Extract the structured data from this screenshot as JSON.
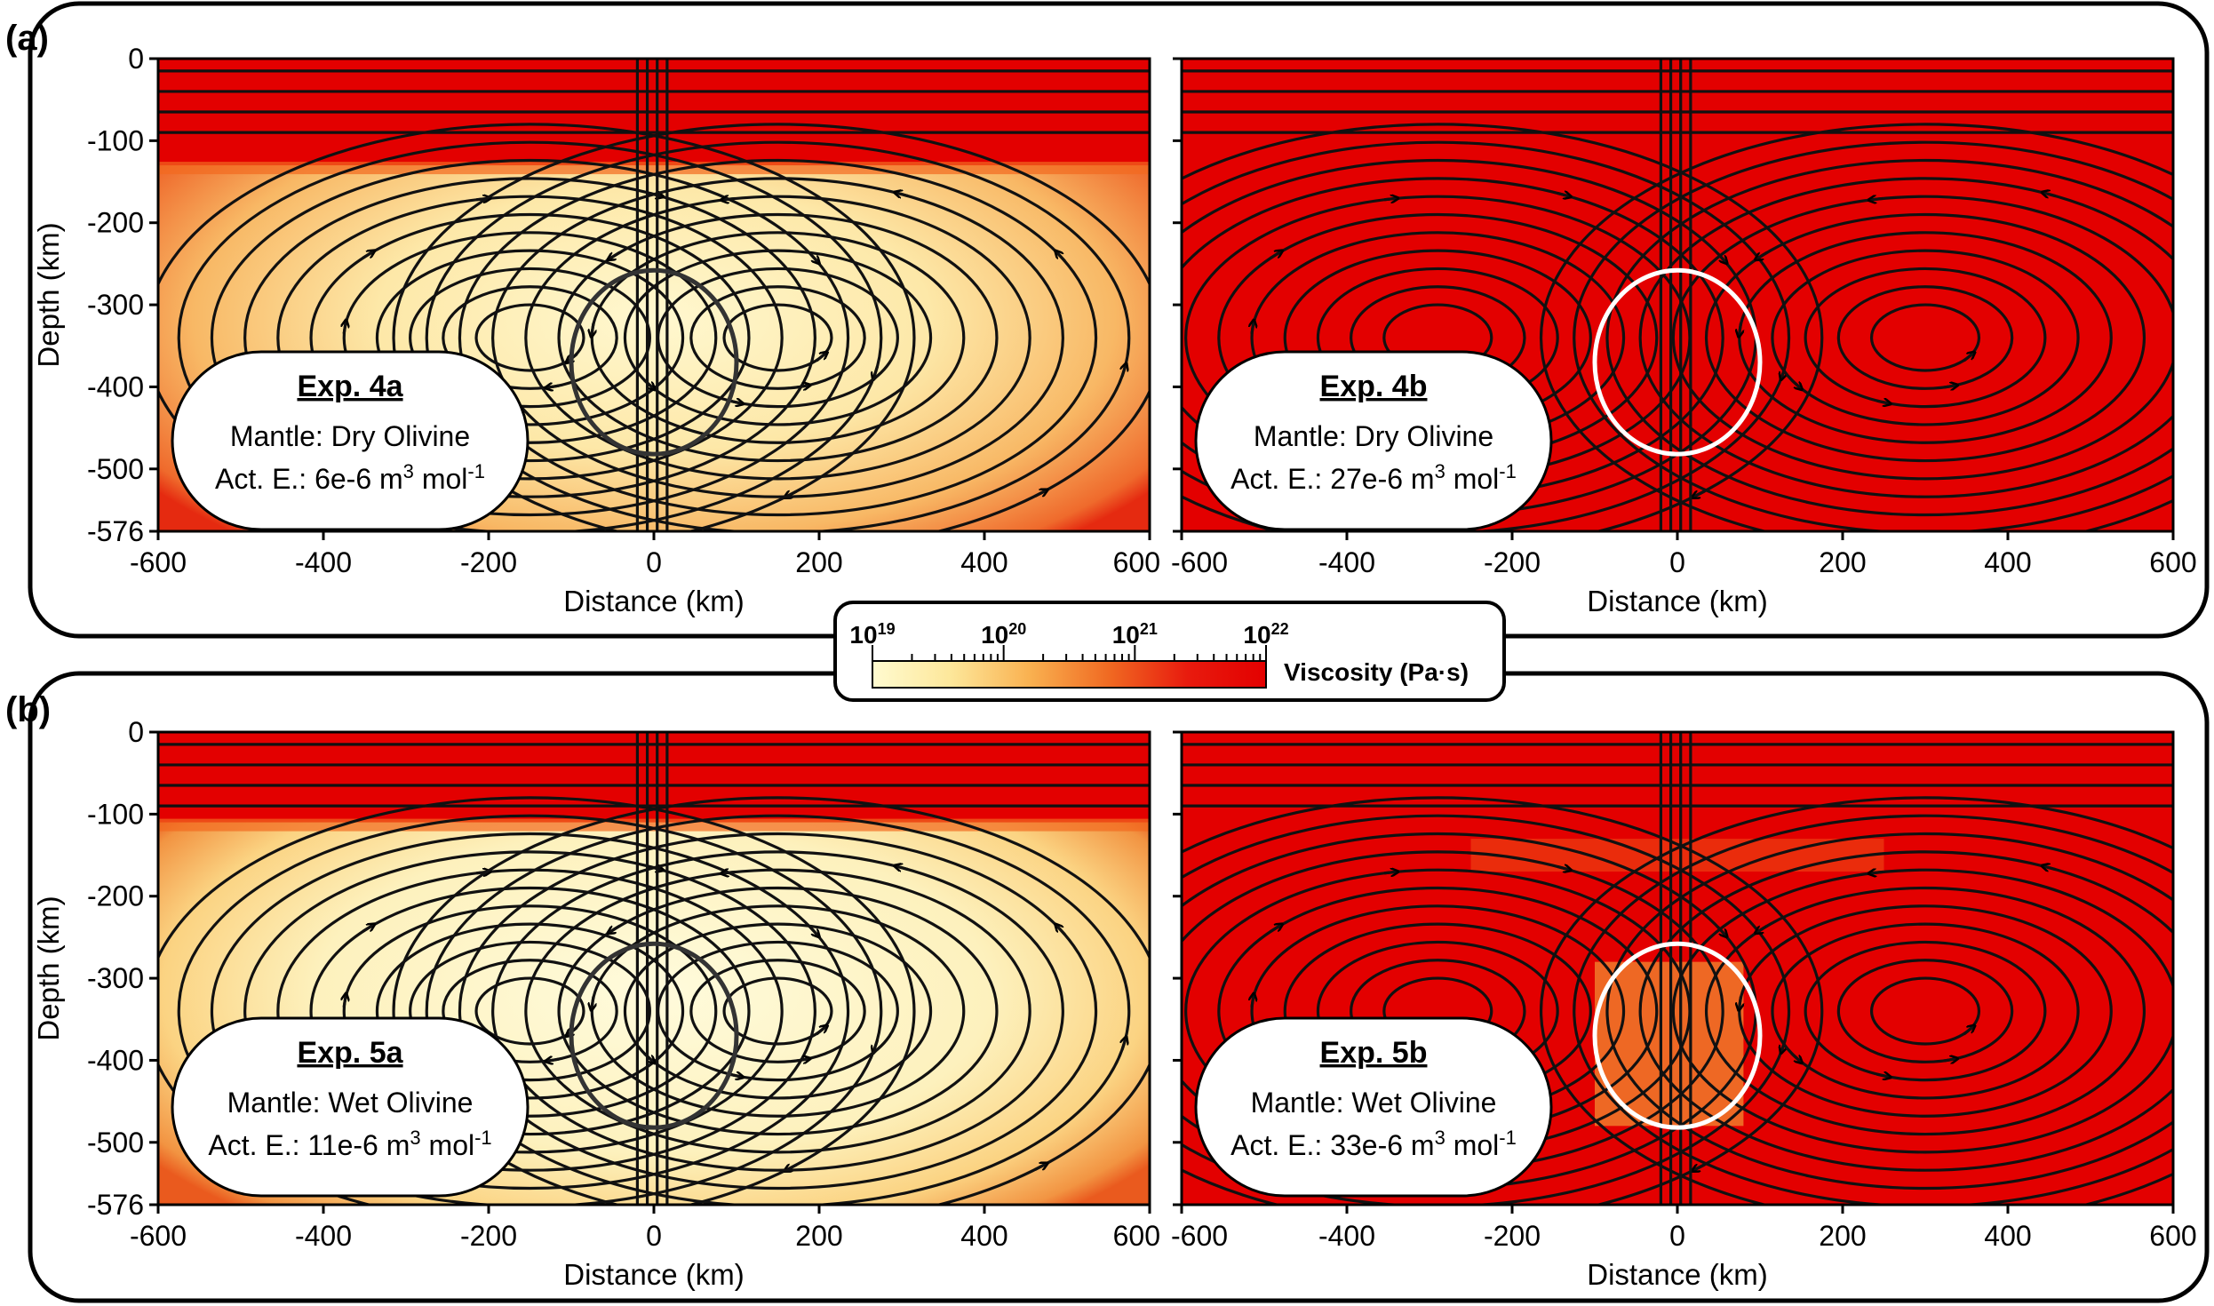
{
  "figure": {
    "rows": [
      {
        "label": "(a)",
        "panels": [
          {
            "exp_title": "Exp. 4a",
            "mantle": "Mantle: Dry Olivine",
            "act_prefix": "Act. E.: 6e-6 m",
            "act_sup1": "3",
            "act_mid": " mol",
            "act_sup2": "-1",
            "style": "warm-interior",
            "circle_color": "#333333"
          },
          {
            "exp_title": "Exp. 4b",
            "mantle": "Mantle: Dry Olivine",
            "act_prefix": "Act. E.: 27e-6 m",
            "act_sup1": "3",
            "act_mid": " mol",
            "act_sup2": "-1",
            "style": "all-red",
            "circle_color": "#ffffff"
          }
        ]
      },
      {
        "label": "(b)",
        "panels": [
          {
            "exp_title": "Exp. 5a",
            "mantle": "Mantle: Wet Olivine",
            "act_prefix": "Act. E.: 11e-6 m",
            "act_sup1": "3",
            "act_mid": " mol",
            "act_sup2": "-1",
            "style": "light-interior",
            "circle_color": "#333333"
          },
          {
            "exp_title": "Exp. 5b",
            "mantle": "Mantle: Wet Olivine",
            "act_prefix": "Act. E.: 33e-6 m",
            "act_sup1": "3",
            "act_mid": " mol",
            "act_sup2": "-1",
            "style": "red-with-plume",
            "circle_color": "#ffffff"
          }
        ]
      }
    ],
    "colorbar": {
      "ticks": [
        {
          "base": "10",
          "exp": "19"
        },
        {
          "base": "10",
          "exp": "20"
        },
        {
          "base": "10",
          "exp": "21"
        },
        {
          "base": "10",
          "exp": "22"
        }
      ],
      "label": "Viscosity (Pa·s)",
      "colors": [
        "#fffbd0",
        "#fde79a",
        "#f9b150",
        "#f06a22",
        "#e81b0e",
        "#e30000"
      ]
    }
  },
  "chart_data": {
    "type": "heatmap",
    "xlabel": "Distance (km)",
    "ylabel": "Depth (km)",
    "xlim": [
      -600,
      600
    ],
    "ylim": [
      -576,
      0
    ],
    "x_ticks": [
      "-600",
      "-400",
      "-200",
      "0",
      "200",
      "400",
      "600"
    ],
    "y_ticks": [
      "0",
      "-100",
      "-200",
      "-300",
      "-400",
      "-500",
      "-576"
    ],
    "y_tick_values": [
      0,
      -100,
      -200,
      -300,
      -400,
      -500,
      -576
    ],
    "x_tick_values": [
      -600,
      -400,
      -200,
      0,
      200,
      400,
      600
    ],
    "circle": {
      "center_x_km": 0,
      "center_y_km": -370,
      "radius_km": 100
    },
    "colorbar_range_log10": [
      19,
      22
    ],
    "panels": [
      "Exp. 4a",
      "Exp. 4b",
      "Exp. 5a",
      "Exp. 5b"
    ]
  }
}
